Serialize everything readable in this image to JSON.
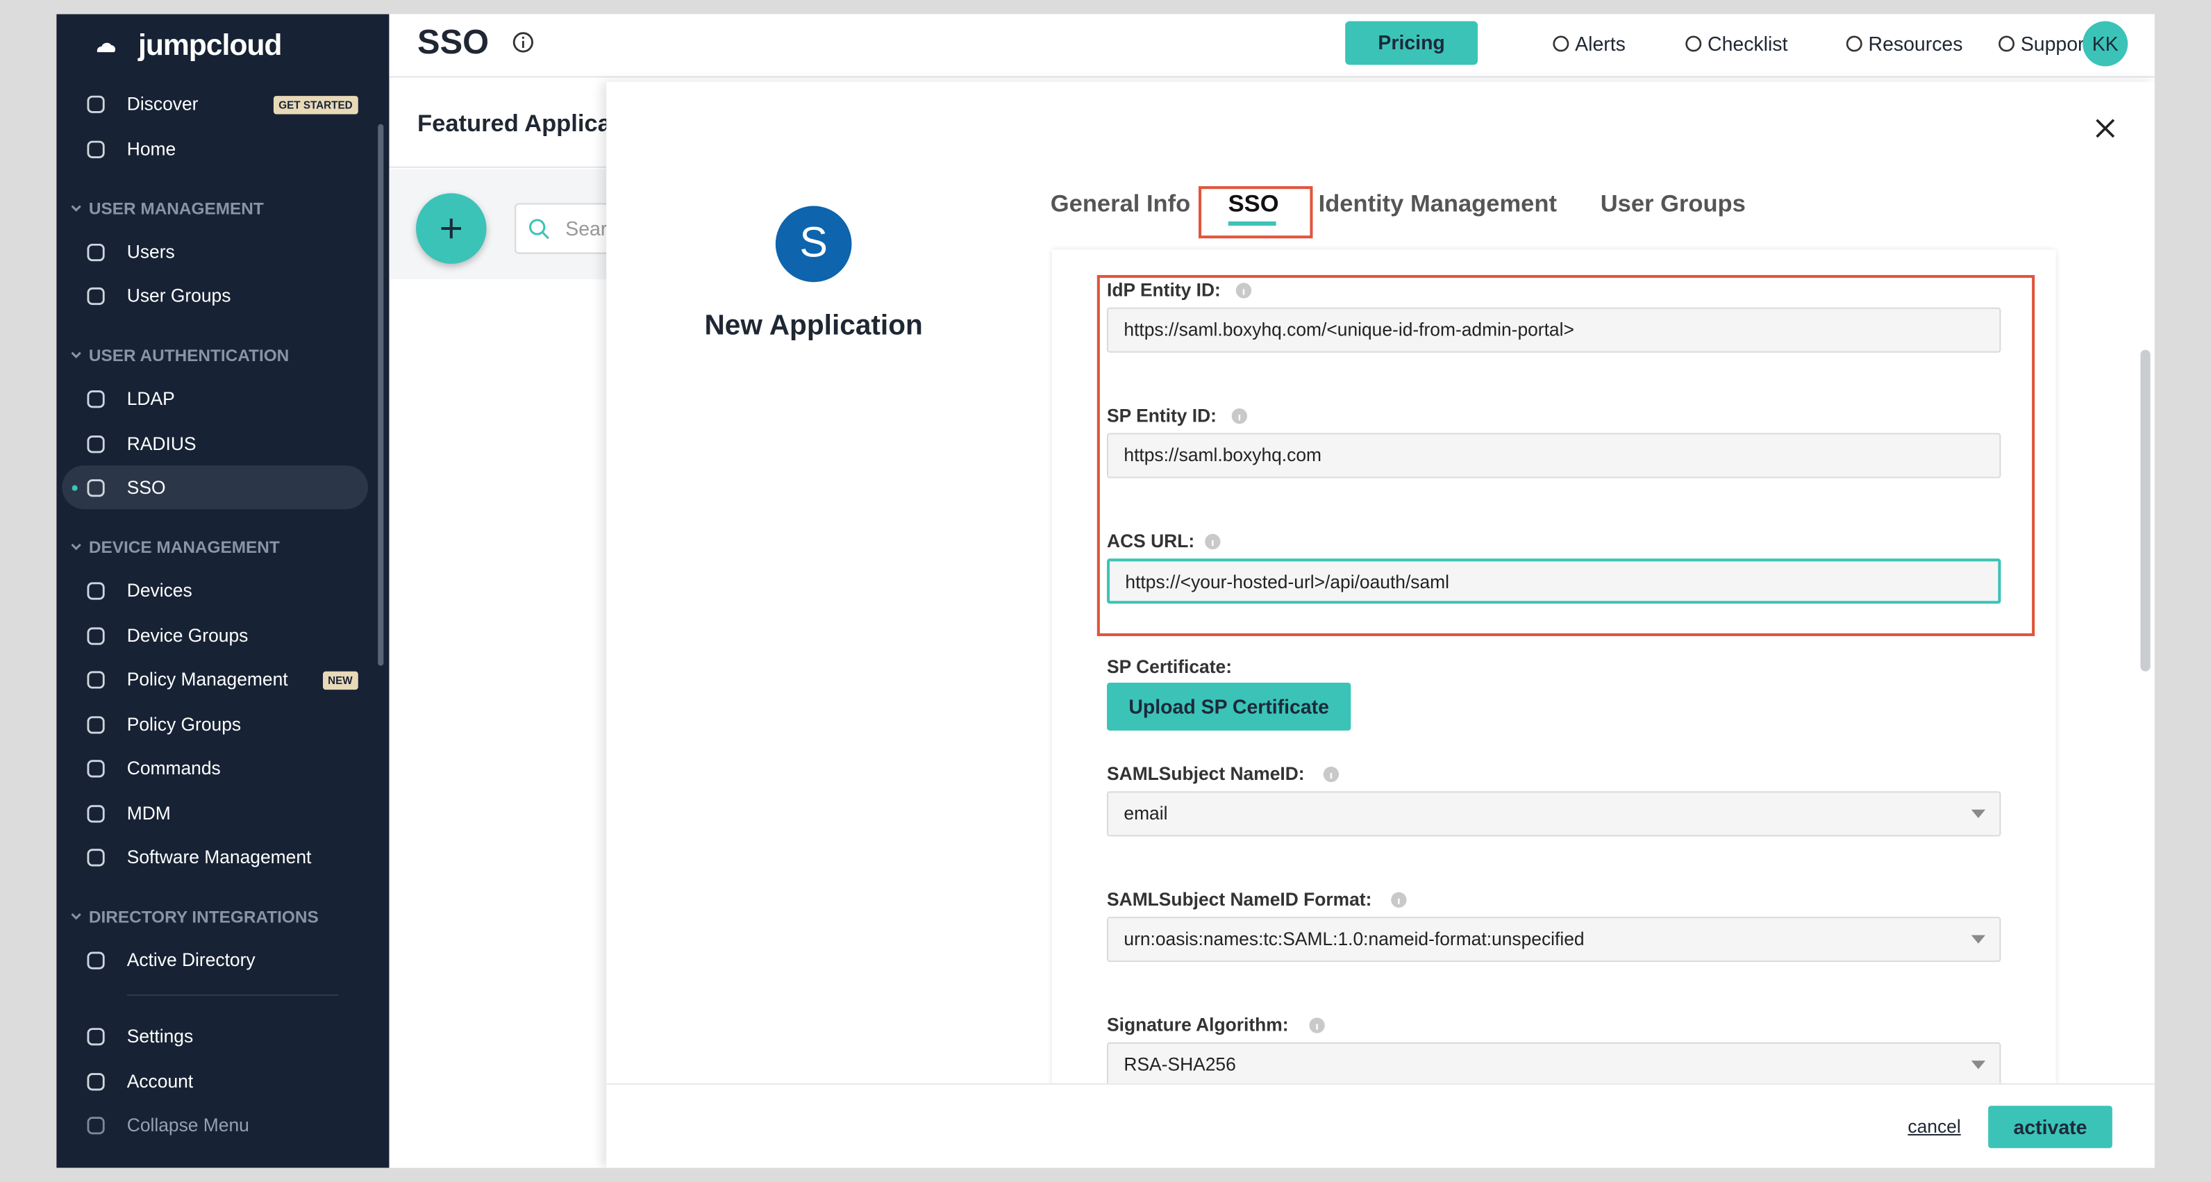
{
  "sidebar": {
    "brand": "jumpcloud",
    "top_items": [
      {
        "label": "Discover",
        "badge": "GET STARTED"
      },
      {
        "label": "Home"
      }
    ],
    "sections": [
      {
        "title": "USER MANAGEMENT",
        "items": [
          {
            "label": "Users"
          },
          {
            "label": "User Groups"
          }
        ]
      },
      {
        "title": "USER AUTHENTICATION",
        "items": [
          {
            "label": "LDAP"
          },
          {
            "label": "RADIUS"
          },
          {
            "label": "SSO",
            "active": true
          }
        ]
      },
      {
        "title": "DEVICE MANAGEMENT",
        "items": [
          {
            "label": "Devices"
          },
          {
            "label": "Device Groups"
          },
          {
            "label": "Policy Management",
            "badge": "NEW"
          },
          {
            "label": "Policy Groups"
          },
          {
            "label": "Commands"
          },
          {
            "label": "MDM"
          },
          {
            "label": "Software Management"
          }
        ]
      },
      {
        "title": "DIRECTORY INTEGRATIONS",
        "items": [
          {
            "label": "Active Directory"
          }
        ]
      }
    ],
    "bottom_items": [
      {
        "label": "Settings"
      },
      {
        "label": "Account"
      },
      {
        "label": "Collapse Menu"
      }
    ]
  },
  "header": {
    "title": "SSO",
    "pricing": "Pricing",
    "links": [
      "Alerts",
      "Checklist",
      "Resources",
      "Support"
    ],
    "avatar": "KK"
  },
  "page": {
    "section_title": "Featured Applications",
    "search_placeholder": "Search"
  },
  "modal": {
    "app_initial": "S",
    "app_name": "New Application",
    "tabs": [
      "General Info",
      "SSO",
      "Identity Management",
      "User Groups"
    ],
    "fields": [
      {
        "label": "IdP Entity ID:",
        "value": "https://saml.boxyhq.com/<unique-id-from-admin-portal>"
      },
      {
        "label": "SP Entity ID:",
        "value": "https://saml.boxyhq.com"
      },
      {
        "label": "ACS URL:",
        "value": "https://<your-hosted-url>/api/oauth/saml"
      }
    ],
    "certificate_label": "SP Certificate:",
    "upload_button": "Upload SP Certificate",
    "selects": [
      {
        "label": "SAMLSubject NameID:",
        "value": "email"
      },
      {
        "label": "SAMLSubject NameID Format:",
        "value": "urn:oasis:names:tc:SAML:1.0:nameid-format:unspecified"
      },
      {
        "label": "Signature Algorithm:",
        "value": "RSA-SHA256"
      }
    ],
    "cancel": "cancel",
    "activate": "activate"
  }
}
